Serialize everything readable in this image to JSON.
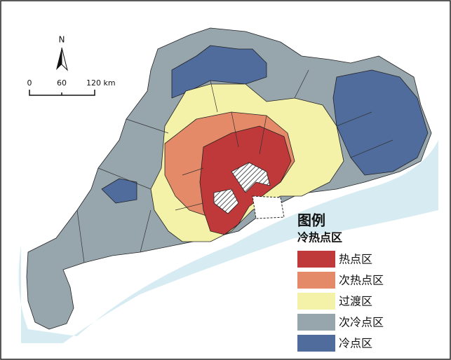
{
  "map": {
    "north_label": "N",
    "scale_labels": [
      "0",
      "60",
      "120 km"
    ],
    "legend": {
      "title": "图例",
      "subtitle": "冷热点区",
      "items": [
        {
          "label": "热点区",
          "color": "#c0393a"
        },
        {
          "label": "次热点区",
          "color": "#e58a68"
        },
        {
          "label": "过渡区",
          "color": "#f4f1a8"
        },
        {
          "label": "次冷点区",
          "color": "#97a5ad"
        },
        {
          "label": "冷点区",
          "color": "#4f6c9c"
        }
      ]
    }
  }
}
